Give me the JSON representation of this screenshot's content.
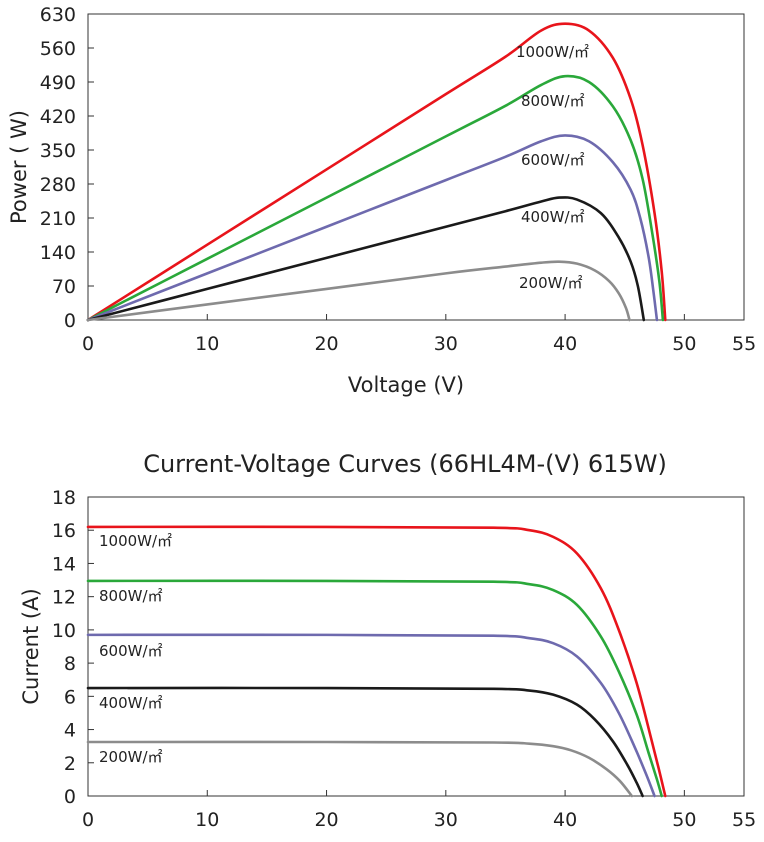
{
  "chart_data": [
    {
      "type": "line",
      "title": "",
      "xlabel": "Voltage (V)",
      "ylabel": "Power ( W)",
      "xlim": [
        0,
        55
      ],
      "ylim": [
        0,
        630
      ],
      "xticks": [
        "0",
        "10",
        "20",
        "30",
        "40",
        "50",
        "55"
      ],
      "yticks": [
        "0",
        "70",
        "140",
        "210",
        "280",
        "350",
        "420",
        "490",
        "560",
        "630"
      ],
      "grid": false,
      "series": [
        {
          "name": "1000W/㎡",
          "color": "#e8141b",
          "values": [
            [
              0,
              0
            ],
            [
              10,
              155
            ],
            [
              20,
              310
            ],
            [
              30,
              465
            ],
            [
              35,
              542
            ],
            [
              38,
              596
            ],
            [
              40,
              610
            ],
            [
              42,
              596
            ],
            [
              44,
              540
            ],
            [
              45.5,
              455
            ],
            [
              46.5,
              360
            ],
            [
              47.5,
              220
            ],
            [
              48.1,
              100
            ],
            [
              48.4,
              0
            ]
          ]
        },
        {
          "name": "800W/㎡",
          "color": "#2aa83a",
          "values": [
            [
              0,
              0
            ],
            [
              10,
              126
            ],
            [
              20,
              252
            ],
            [
              30,
              378
            ],
            [
              35,
              441
            ],
            [
              38,
              484
            ],
            [
              40,
              502
            ],
            [
              42,
              490
            ],
            [
              44,
              440
            ],
            [
              45.5,
              370
            ],
            [
              46.5,
              290
            ],
            [
              47.3,
              180
            ],
            [
              47.9,
              80
            ],
            [
              48.2,
              0
            ]
          ]
        },
        {
          "name": "600W/㎡",
          "color": "#6e6aae",
          "values": [
            [
              0,
              0
            ],
            [
              10,
              96
            ],
            [
              20,
              192
            ],
            [
              30,
              288
            ],
            [
              35,
              336
            ],
            [
              38,
              368
            ],
            [
              40,
              380
            ],
            [
              42,
              368
            ],
            [
              44,
              325
            ],
            [
              45.5,
              268
            ],
            [
              46.3,
              210
            ],
            [
              47,
              130
            ],
            [
              47.4,
              60
            ],
            [
              47.7,
              0
            ]
          ]
        },
        {
          "name": "400W/㎡",
          "color": "#1a1a1a",
          "values": [
            [
              0,
              0
            ],
            [
              10,
              64
            ],
            [
              20,
              128
            ],
            [
              30,
              192
            ],
            [
              35,
              224
            ],
            [
              38,
              244
            ],
            [
              39.5,
              252
            ],
            [
              41,
              248
            ],
            [
              43,
              220
            ],
            [
              44.5,
              170
            ],
            [
              45.5,
              120
            ],
            [
              46.1,
              70
            ],
            [
              46.6,
              0
            ]
          ]
        },
        {
          "name": "200W/㎡",
          "color": "#8c8c8c",
          "values": [
            [
              0,
              0
            ],
            [
              10,
              32
            ],
            [
              20,
              64
            ],
            [
              30,
              96
            ],
            [
              35,
              110
            ],
            [
              38,
              118
            ],
            [
              39.5,
              120
            ],
            [
              41,
              116
            ],
            [
              42.5,
              102
            ],
            [
              43.7,
              80
            ],
            [
              44.5,
              55
            ],
            [
              45.1,
              25
            ],
            [
              45.4,
              0
            ]
          ]
        }
      ]
    },
    {
      "type": "line",
      "title": "Current-Voltage Curves (66HL4M-(V) 615W)",
      "xlabel": "",
      "ylabel": "Current (A)",
      "xlim": [
        0,
        55
      ],
      "ylim": [
        0,
        18
      ],
      "xticks": [
        "0",
        "10",
        "20",
        "30",
        "40",
        "50",
        "55"
      ],
      "yticks": [
        "0",
        "2",
        "4",
        "6",
        "8",
        "10",
        "12",
        "14",
        "16",
        "18"
      ],
      "grid": false,
      "series": [
        {
          "name": "1000W/㎡",
          "color": "#e8141b",
          "values": [
            [
              0,
              16.2
            ],
            [
              20,
              16.2
            ],
            [
              34,
              16.15
            ],
            [
              37,
              16.0
            ],
            [
              39,
              15.6
            ],
            [
              41,
              14.6
            ],
            [
              43,
              12.5
            ],
            [
              44.5,
              10.0
            ],
            [
              46,
              6.8
            ],
            [
              47.2,
              3.5
            ],
            [
              47.9,
              1.5
            ],
            [
              48.4,
              0
            ]
          ]
        },
        {
          "name": "800W/㎡",
          "color": "#2aa83a",
          "values": [
            [
              0,
              12.95
            ],
            [
              20,
              12.95
            ],
            [
              34,
              12.9
            ],
            [
              37,
              12.75
            ],
            [
              39,
              12.4
            ],
            [
              41,
              11.5
            ],
            [
              43,
              9.6
            ],
            [
              44.5,
              7.5
            ],
            [
              46,
              4.9
            ],
            [
              47,
              2.6
            ],
            [
              47.7,
              1.0
            ],
            [
              48.1,
              0
            ]
          ]
        },
        {
          "name": "600W/㎡",
          "color": "#6e6aae",
          "values": [
            [
              0,
              9.7
            ],
            [
              20,
              9.7
            ],
            [
              34,
              9.65
            ],
            [
              37,
              9.5
            ],
            [
              39,
              9.2
            ],
            [
              41,
              8.4
            ],
            [
              43,
              6.8
            ],
            [
              44.5,
              5.0
            ],
            [
              45.8,
              3.0
            ],
            [
              46.8,
              1.3
            ],
            [
              47.5,
              0
            ]
          ]
        },
        {
          "name": "400W/㎡",
          "color": "#1a1a1a",
          "values": [
            [
              0,
              6.5
            ],
            [
              20,
              6.5
            ],
            [
              34,
              6.45
            ],
            [
              37,
              6.35
            ],
            [
              39,
              6.1
            ],
            [
              41,
              5.5
            ],
            [
              42.5,
              4.6
            ],
            [
              44,
              3.3
            ],
            [
              45.2,
              1.9
            ],
            [
              46,
              0.8
            ],
            [
              46.5,
              0
            ]
          ]
        },
        {
          "name": "200W/㎡",
          "color": "#8c8c8c",
          "values": [
            [
              0,
              3.25
            ],
            [
              20,
              3.25
            ],
            [
              34,
              3.22
            ],
            [
              37,
              3.15
            ],
            [
              39,
              3.0
            ],
            [
              40.5,
              2.75
            ],
            [
              42,
              2.3
            ],
            [
              43.5,
              1.6
            ],
            [
              44.6,
              0.9
            ],
            [
              45.6,
              0
            ]
          ]
        }
      ]
    }
  ]
}
